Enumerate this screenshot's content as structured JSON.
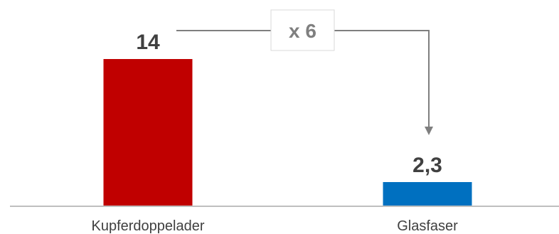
{
  "chart_data": {
    "type": "bar",
    "categories": [
      "Kupferdoppelader",
      "Glasfaser"
    ],
    "values": [
      14,
      2.3
    ],
    "value_labels": [
      "14",
      "2,3"
    ],
    "bar_colors": [
      "#c00000",
      "#0070c0"
    ],
    "ylim": [
      0,
      14
    ],
    "grid": false,
    "annotation": {
      "label": "x 6",
      "from": "Kupferdoppelader",
      "to": "Glasfaser",
      "color": "#7f7f7f"
    }
  }
}
